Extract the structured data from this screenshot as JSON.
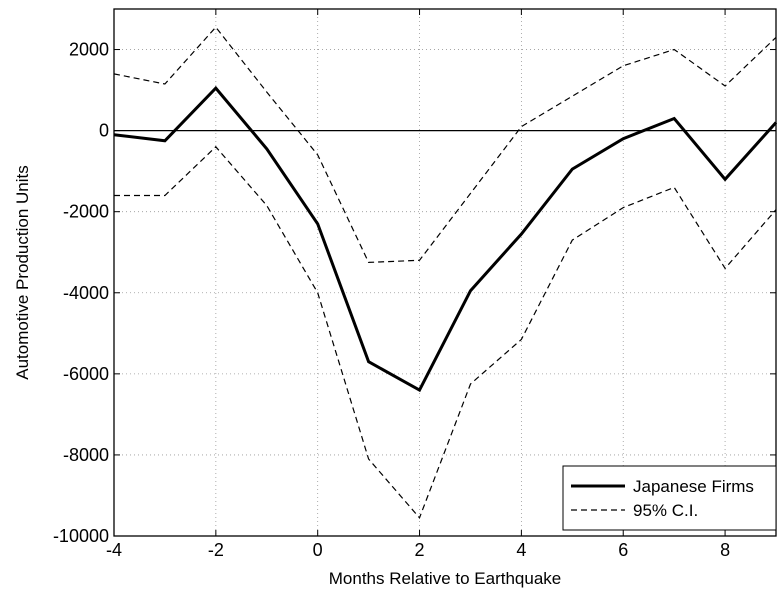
{
  "chart_data": {
    "type": "line",
    "title": "",
    "xlabel": "Months Relative to Earthquake",
    "ylabel": "Automotive Production Units",
    "xlim": [
      -4,
      9
    ],
    "ylim": [
      -10000,
      3000
    ],
    "x": [
      -4,
      -3,
      -2,
      -1,
      0,
      1,
      2,
      3,
      4,
      5,
      6,
      7,
      8,
      9
    ],
    "xticks": [
      -4,
      -2,
      0,
      2,
      4,
      6,
      8
    ],
    "yticks": [
      2000,
      0,
      -2000,
      -4000,
      -6000,
      -8000,
      -10000
    ],
    "xtick_labels": [
      "-4",
      "-2",
      "0",
      "2",
      "4",
      "6",
      "8"
    ],
    "ytick_labels": [
      "2000",
      "0",
      "-2000",
      "-4000",
      "-6000",
      "-8000",
      "-10000"
    ],
    "grid": true,
    "reference_line_y": 0,
    "legend_position": "bottom-right",
    "series": [
      {
        "name": "Japanese Firms",
        "style": "solid-thick",
        "color": "#000000",
        "values": [
          -100,
          -250,
          1050,
          -450,
          -2300,
          -5700,
          -6400,
          -3950,
          -2550,
          -950,
          -200,
          300,
          -1200,
          200
        ]
      },
      {
        "name": "95% C.I.",
        "style": "dashed",
        "color": "#000000",
        "values": [
          1400,
          1150,
          2550,
          950,
          -600,
          -3250,
          -3200,
          -1550,
          100,
          850,
          1600,
          2000,
          1100,
          2300
        ]
      },
      {
        "name": "",
        "style": "dashed",
        "color": "#000000",
        "values": [
          -1600,
          -1600,
          -400,
          -1850,
          -4000,
          -8100,
          -9550,
          -6250,
          -5150,
          -2700,
          -1900,
          -1400,
          -3400,
          -1950
        ]
      }
    ]
  }
}
